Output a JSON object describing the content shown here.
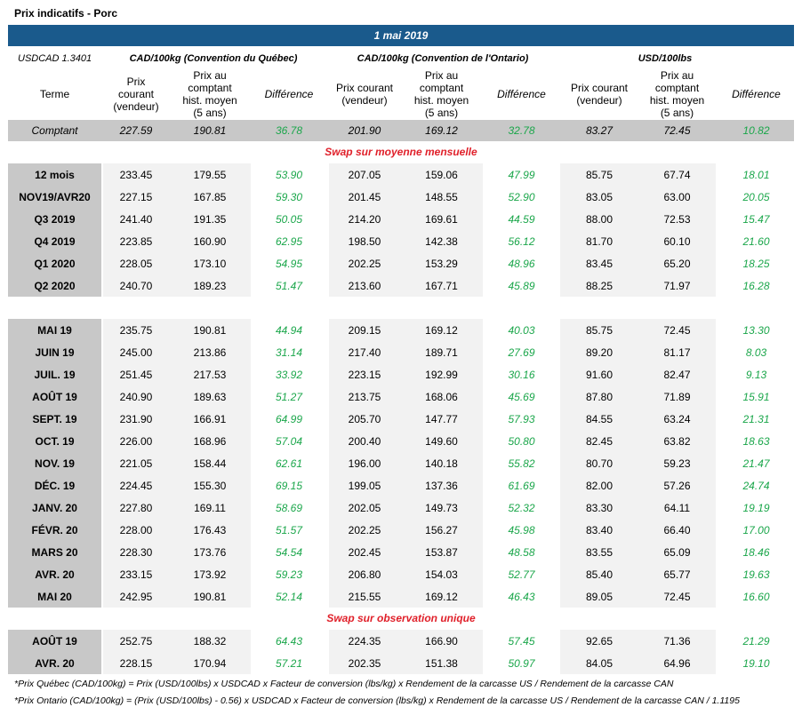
{
  "header": {
    "title": "Prix indicatifs - Porc",
    "date": "1 mai 2019"
  },
  "table": {
    "rate": "USDCAD 1.3401",
    "groups": [
      "CAD/100kg (Convention du Québec)",
      "CAD/100kg (Convention de l'Ontario)",
      "USD/100lbs"
    ],
    "columns": [
      "Terme",
      "Prix\ncourant\n(vendeur)",
      "Prix au\ncomptant\nhist. moyen\n(5 ans)",
      "Différence",
      "Prix courant\n(vendeur)",
      "Prix au\ncomptant\nhist. moyen\n(5 ans)",
      "Différence",
      "Prix courant\n(vendeur)",
      "Prix au\ncomptant\nhist. moyen\n(5 ans)",
      "Différence"
    ],
    "comptant": [
      "Comptant",
      "227.59",
      "190.81",
      "36.78",
      "201.90",
      "169.12",
      "32.78",
      "83.27",
      "72.45",
      "10.82"
    ],
    "sections": [
      {
        "title": "Swap sur moyenne mensuelle",
        "blocks": [
          [
            [
              "12 mois",
              "233.45",
              "179.55",
              "53.90",
              "207.05",
              "159.06",
              "47.99",
              "85.75",
              "67.74",
              "18.01"
            ],
            [
              "NOV19/AVR20",
              "227.15",
              "167.85",
              "59.30",
              "201.45",
              "148.55",
              "52.90",
              "83.05",
              "63.00",
              "20.05"
            ],
            [
              "Q3 2019",
              "241.40",
              "191.35",
              "50.05",
              "214.20",
              "169.61",
              "44.59",
              "88.00",
              "72.53",
              "15.47"
            ],
            [
              "Q4 2019",
              "223.85",
              "160.90",
              "62.95",
              "198.50",
              "142.38",
              "56.12",
              "81.70",
              "60.10",
              "21.60"
            ],
            [
              "Q1 2020",
              "228.05",
              "173.10",
              "54.95",
              "202.25",
              "153.29",
              "48.96",
              "83.45",
              "65.20",
              "18.25"
            ],
            [
              "Q2 2020",
              "240.70",
              "189.23",
              "51.47",
              "213.60",
              "167.71",
              "45.89",
              "88.25",
              "71.97",
              "16.28"
            ]
          ],
          [
            [
              "MAI 19",
              "235.75",
              "190.81",
              "44.94",
              "209.15",
              "169.12",
              "40.03",
              "85.75",
              "72.45",
              "13.30"
            ],
            [
              "JUIN 19",
              "245.00",
              "213.86",
              "31.14",
              "217.40",
              "189.71",
              "27.69",
              "89.20",
              "81.17",
              "8.03"
            ],
            [
              "JUIL. 19",
              "251.45",
              "217.53",
              "33.92",
              "223.15",
              "192.99",
              "30.16",
              "91.60",
              "82.47",
              "9.13"
            ],
            [
              "AOÛT 19",
              "240.90",
              "189.63",
              "51.27",
              "213.75",
              "168.06",
              "45.69",
              "87.80",
              "71.89",
              "15.91"
            ],
            [
              "SEPT. 19",
              "231.90",
              "166.91",
              "64.99",
              "205.70",
              "147.77",
              "57.93",
              "84.55",
              "63.24",
              "21.31"
            ],
            [
              "OCT. 19",
              "226.00",
              "168.96",
              "57.04",
              "200.40",
              "149.60",
              "50.80",
              "82.45",
              "63.82",
              "18.63"
            ],
            [
              "NOV. 19",
              "221.05",
              "158.44",
              "62.61",
              "196.00",
              "140.18",
              "55.82",
              "80.70",
              "59.23",
              "21.47"
            ],
            [
              "DÉC. 19",
              "224.45",
              "155.30",
              "69.15",
              "199.05",
              "137.36",
              "61.69",
              "82.00",
              "57.26",
              "24.74"
            ],
            [
              "JANV. 20",
              "227.80",
              "169.11",
              "58.69",
              "202.05",
              "149.73",
              "52.32",
              "83.30",
              "64.11",
              "19.19"
            ],
            [
              "FÉVR. 20",
              "228.00",
              "176.43",
              "51.57",
              "202.25",
              "156.27",
              "45.98",
              "83.40",
              "66.40",
              "17.00"
            ],
            [
              "MARS 20",
              "228.30",
              "173.76",
              "54.54",
              "202.45",
              "153.87",
              "48.58",
              "83.55",
              "65.09",
              "18.46"
            ],
            [
              "AVR. 20",
              "233.15",
              "173.92",
              "59.23",
              "206.80",
              "154.03",
              "52.77",
              "85.40",
              "65.77",
              "19.63"
            ],
            [
              "MAI 20",
              "242.95",
              "190.81",
              "52.14",
              "215.55",
              "169.12",
              "46.43",
              "89.05",
              "72.45",
              "16.60"
            ]
          ]
        ]
      },
      {
        "title": "Swap sur observation unique",
        "blocks": [
          [
            [
              "AOÛT 19",
              "252.75",
              "188.32",
              "64.43",
              "224.35",
              "166.90",
              "57.45",
              "92.65",
              "71.36",
              "21.29"
            ],
            [
              "AVR. 20",
              "228.15",
              "170.94",
              "57.21",
              "202.35",
              "151.38",
              "50.97",
              "84.05",
              "64.96",
              "19.10"
            ]
          ]
        ]
      }
    ]
  },
  "footnotes": [
    "*Prix Québec (CAD/100kg) = Prix (USD/100lbs) x USDCAD x Facteur de conversion (lbs/kg) x Rendement de la carcasse US / Rendement de la carcasse CAN",
    "*Prix Ontario (CAD/100kg) = (Prix (USD/100lbs) - 0.56) x USDCAD x Facteur de conversion (lbs/kg) x Rendement de la carcasse US / Rendement de la carcasse CAN / 1.1195"
  ]
}
